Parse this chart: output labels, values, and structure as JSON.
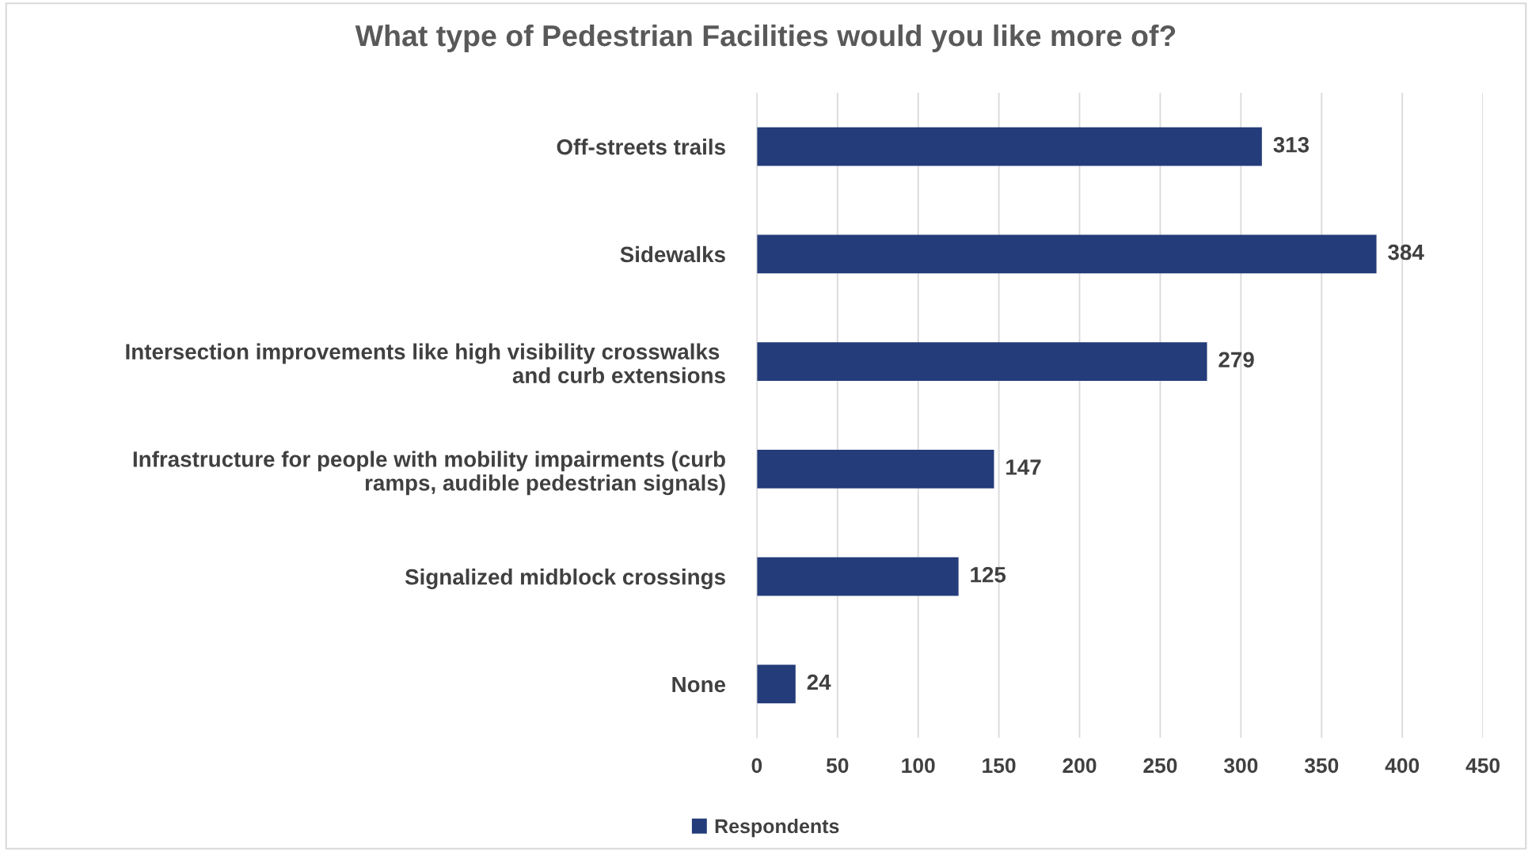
{
  "chart_data": {
    "type": "bar",
    "orientation": "horizontal",
    "title": "What type of Pedestrian Facilities would you like more of?",
    "categories": [
      "Off-streets trails",
      "Sidewalks",
      "Intersection improvements like high visibility crosswalks \nand curb extensions",
      "Infrastructure for people with mobility impairments (curb\nramps, audible pedestrian signals)",
      "Signalized midblock crossings",
      "None"
    ],
    "series": [
      {
        "name": "Respondents",
        "color": "#253c7a",
        "values": [
          313,
          384,
          279,
          147,
          125,
          24
        ]
      }
    ],
    "xlim": [
      0,
      450
    ],
    "xticks": [
      0,
      50,
      100,
      150,
      200,
      250,
      300,
      350,
      400,
      450
    ],
    "grid": "x",
    "legend": "bottom",
    "data_labels": true
  }
}
